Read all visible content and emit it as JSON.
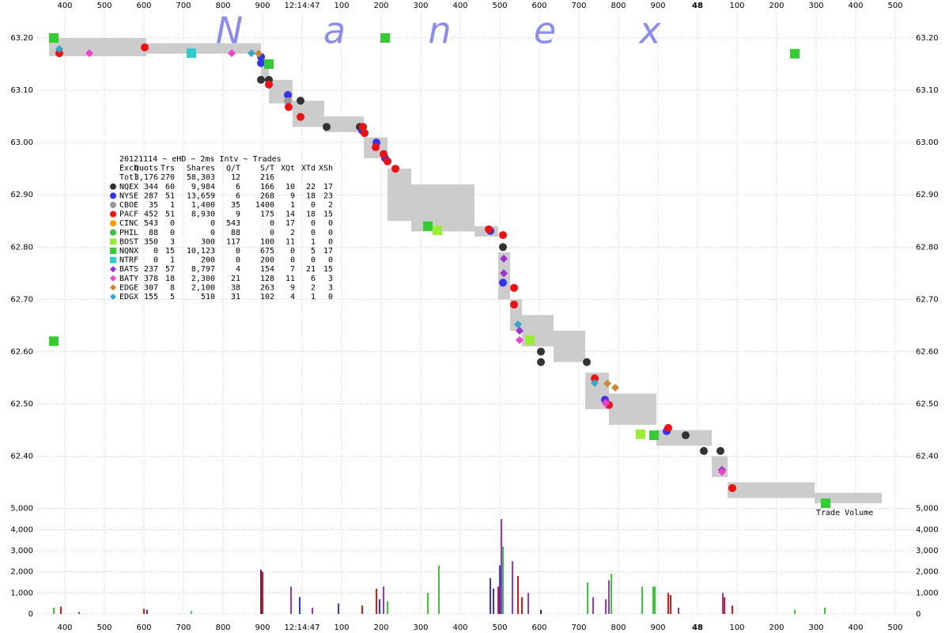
{
  "chart_data": [
    {
      "type": "spread-trades",
      "watermark": [
        "N",
        "a",
        "n",
        "e",
        "x"
      ],
      "xlim": [
        -670,
        1546
      ],
      "xticks": [
        {
          "value": -600,
          "label": "400"
        },
        {
          "value": -500,
          "label": "500"
        },
        {
          "value": -400,
          "label": "600"
        },
        {
          "value": -300,
          "label": "700"
        },
        {
          "value": -200,
          "label": "800"
        },
        {
          "value": -100,
          "label": "900"
        },
        {
          "value": 0,
          "label": "12:14:47"
        },
        100,
        200,
        300,
        400,
        500,
        600,
        700,
        800,
        900,
        {
          "value": 1000,
          "label": "48"
        },
        {
          "value": 1100,
          "label": "100"
        },
        {
          "value": 1200,
          "label": "200"
        },
        {
          "value": 1300,
          "label": "300"
        },
        {
          "value": 1400,
          "label": "400"
        },
        {
          "value": 1500,
          "label": "500"
        }
      ],
      "ylim": [
        62.31,
        63.25
      ],
      "yticks": [
        {
          "value": 63.2,
          "label": "63.20"
        },
        {
          "value": 63.1,
          "label": "63.10"
        },
        {
          "value": 63.0,
          "label": "63.00"
        },
        {
          "value": 62.9,
          "label": "62.90"
        },
        {
          "value": 62.8,
          "label": "62.80"
        },
        {
          "value": 62.7,
          "label": "62.70"
        },
        {
          "value": 62.6,
          "label": "62.60"
        },
        {
          "value": 62.5,
          "label": "62.50"
        },
        {
          "value": 62.4,
          "label": "62.40"
        }
      ],
      "grid": true,
      "spread": {
        "color": "#cccccc",
        "x_edges": [
          -640,
          -394,
          -104,
          -84,
          -24,
          56,
          156,
          216,
          276,
          436,
          496,
          526,
          556,
          636,
          716,
          776,
          896,
          1036,
          1076,
          1296,
          1466
        ],
        "ask": [
          63.2,
          63.19,
          63.16,
          63.12,
          63.08,
          63.05,
          63.01,
          62.95,
          62.92,
          62.84,
          62.79,
          62.7,
          62.67,
          62.64,
          62.56,
          62.52,
          62.45,
          62.4,
          62.35,
          62.33
        ],
        "bid": [
          63.165,
          63.17,
          63.12,
          63.075,
          63.03,
          63.02,
          62.97,
          62.85,
          62.83,
          62.82,
          62.7,
          62.64,
          62.61,
          62.58,
          62.49,
          62.46,
          62.42,
          62.36,
          62.32,
          62.31
        ]
      },
      "legend": {
        "title": "20121114 ~ eHD ~ 2ms Intv ~ Trades",
        "columns": [
          "Exch",
          "Quots",
          "Trs",
          "Shares",
          "Q/T",
          "S/T",
          "XQt",
          "XTd",
          "XSh"
        ],
        "total": {
          "name": "Totl",
          "cells": [
            "3,176",
            "270",
            "58,303",
            "12",
            "216"
          ]
        }
      },
      "series": [
        {
          "name": "NQEX",
          "color": "#333333",
          "marker": "circle",
          "stats": [
            "344",
            "60",
            "9,984",
            "6",
            "166",
            "10",
            "22",
            "17"
          ],
          "x": [
            -104,
            -84,
            -4,
            62,
            146,
            604,
            604,
            720,
            970,
            1016,
            1058,
            508
          ],
          "values": [
            63.12,
            63.12,
            63.08,
            63.03,
            63.03,
            62.6,
            62.58,
            62.58,
            62.44,
            62.41,
            62.41,
            62.8
          ]
        },
        {
          "name": "NYSE",
          "color": "#3333ee",
          "marker": "circle",
          "stats": [
            "287",
            "51",
            "13,659",
            "6",
            "268",
            "9",
            "18",
            "23"
          ],
          "x": [
            -104,
            -104,
            -36,
            188,
            210,
            476,
            508,
            766,
            922,
            152
          ],
          "values": [
            63.164,
            63.152,
            63.091,
            63.0,
            62.97,
            62.831,
            62.732,
            62.508,
            62.448,
            63.023
          ]
        },
        {
          "name": "CBOE",
          "color": "#999999",
          "marker": "circle",
          "stats": [
            "35",
            "1",
            "1,400",
            "35",
            "1400",
            "1",
            "0",
            "2"
          ],
          "x": [
            -36
          ],
          "values": [
            63.079
          ]
        },
        {
          "name": "PACF",
          "color": "#ee1111",
          "marker": "circle",
          "stats": [
            "452",
            "51",
            "8,930",
            "9",
            "175",
            "14",
            "18",
            "15"
          ],
          "x": [
            -614,
            -398,
            -84,
            -34,
            -4,
            154,
            186,
            206,
            216,
            236,
            508,
            536,
            536,
            740,
            926,
            1088,
            776,
            472,
            158
          ],
          "values": [
            63.171,
            63.182,
            63.111,
            63.068,
            63.049,
            63.03,
            62.991,
            62.978,
            62.964,
            62.95,
            62.823,
            62.722,
            62.69,
            62.549,
            62.454,
            62.339,
            62.498,
            62.834,
            63.018
          ]
        },
        {
          "name": "CINC",
          "color": "#ff9900",
          "marker": "circle",
          "stats": [
            "543",
            "0",
            "0",
            "543",
            "0",
            "17",
            "0",
            "0"
          ],
          "x": [],
          "values": []
        },
        {
          "name": "PHIL",
          "color": "#44bb44",
          "marker": "circle",
          "stats": [
            "88",
            "0",
            "0",
            "88",
            "0",
            "2",
            "0",
            "0"
          ],
          "x": [],
          "values": []
        },
        {
          "name": "BOST",
          "color": "#99ee33",
          "marker": "square",
          "stats": [
            "350",
            "3",
            "300",
            "117",
            "100",
            "11",
            "1",
            "0"
          ],
          "x": [
            342,
            856,
            576
          ],
          "values": [
            62.832,
            62.442,
            62.622
          ]
        },
        {
          "name": "NQNX",
          "color": "#33cc33",
          "marker": "square",
          "stats": [
            "0",
            "15",
            "10,123",
            "0",
            "675",
            "0",
            "5",
            "17"
          ],
          "x": [
            -628,
            210,
            -84,
            1246,
            1324,
            -628,
            318,
            890
          ],
          "values": [
            63.2,
            63.2,
            63.15,
            63.17,
            62.31,
            62.62,
            62.84,
            62.44
          ]
        },
        {
          "name": "NTRF",
          "color": "#33cccc",
          "marker": "square",
          "stats": [
            "0",
            "1",
            "200",
            "0",
            "200",
            "0",
            "0",
            "0"
          ],
          "x": [
            -280
          ],
          "values": [
            63.171
          ]
        },
        {
          "name": "BATS",
          "color": "#9933cc",
          "marker": "diamond",
          "stats": [
            "237",
            "57",
            "8,797",
            "4",
            "154",
            "7",
            "21",
            "15"
          ],
          "x": [
            510,
            510,
            550,
            768,
            1062
          ],
          "values": [
            62.778,
            62.75,
            62.64,
            62.504,
            62.374
          ]
        },
        {
          "name": "BATY",
          "color": "#ee44cc",
          "marker": "diamond",
          "stats": [
            "378",
            "18",
            "2,300",
            "21",
            "128",
            "11",
            "6",
            "3"
          ],
          "x": [
            -538,
            -178,
            550,
            1062,
            768
          ],
          "values": [
            63.171,
            63.171,
            62.622,
            62.37,
            62.501
          ]
        },
        {
          "name": "EDGE",
          "color": "#cc8833",
          "marker": "diamond",
          "stats": [
            "307",
            "8",
            "2,100",
            "38",
            "263",
            "9",
            "2",
            "3"
          ],
          "x": [
            772,
            792,
            -110
          ],
          "values": [
            62.539,
            62.531,
            63.17
          ]
        },
        {
          "name": "EDGX",
          "color": "#33aacc",
          "marker": "diamond",
          "stats": [
            "155",
            "5",
            "510",
            "31",
            "102",
            "4",
            "1",
            "0"
          ],
          "x": [
            -614,
            -128,
            546,
            740
          ],
          "values": [
            63.179,
            63.171,
            62.652,
            62.54
          ]
        }
      ]
    },
    {
      "type": "volume-bar",
      "label": "Trade Volume",
      "ylim": [
        0,
        5100
      ],
      "yticks": [
        0,
        {
          "value": 1000,
          "label": "1,000"
        },
        {
          "value": 2000,
          "label": "2,000"
        },
        {
          "value": 3000,
          "label": "3,000"
        },
        {
          "value": 4000,
          "label": "4,000"
        },
        {
          "value": 5000,
          "label": "5,000"
        }
      ],
      "x": [
        -628,
        -610,
        -564,
        -400,
        -392,
        -280,
        -104,
        -100,
        -28,
        -6,
        26,
        92,
        152,
        188,
        196,
        206,
        216,
        318,
        346,
        476,
        484,
        496,
        500,
        504,
        508,
        532,
        546,
        556,
        572,
        604,
        722,
        736,
        768,
        776,
        782,
        860,
        888,
        892,
        926,
        932,
        952,
        1064,
        1068,
        1088,
        1246,
        1322
      ],
      "values": [
        300,
        350,
        100,
        250,
        200,
        150,
        2100,
        2000,
        1300,
        800,
        300,
        500,
        400,
        1200,
        700,
        1300,
        600,
        1000,
        2300,
        1700,
        1200,
        1300,
        2300,
        4500,
        3200,
        2500,
        1800,
        800,
        1000,
        200,
        1500,
        800,
        700,
        1600,
        1900,
        1300,
        1300,
        1300,
        1000,
        900,
        300,
        1000,
        800,
        400,
        200,
        300
      ],
      "colors": [
        "#33cc33",
        "#ee1111",
        "#9933cc",
        "#ee1111",
        "#3333ee",
        "#33cccc",
        "#552266",
        "#ee1111",
        "#9933cc",
        "#3333ee",
        "#9933cc",
        "#3333ee",
        "#ee1111",
        "#ee1111",
        "#3333ee",
        "#9933cc",
        "#33cc33",
        "#33cc33",
        "#33cc33",
        "#3333ee",
        "#3333ee",
        "#ee1111",
        "#3333ee",
        "#9933cc",
        "#33cc33",
        "#9933cc",
        "#ee1111",
        "#ee1111",
        "#9933cc",
        "#333333",
        "#33cc33",
        "#9933cc",
        "#9933cc",
        "#9933cc",
        "#33cc33",
        "#33cc33",
        "#33cc33",
        "#33cc33",
        "#ee1111",
        "#ee1111",
        "#9933cc",
        "#9933cc",
        "#ee1111",
        "#ee1111",
        "#33cc33",
        "#33cc33"
      ]
    }
  ]
}
